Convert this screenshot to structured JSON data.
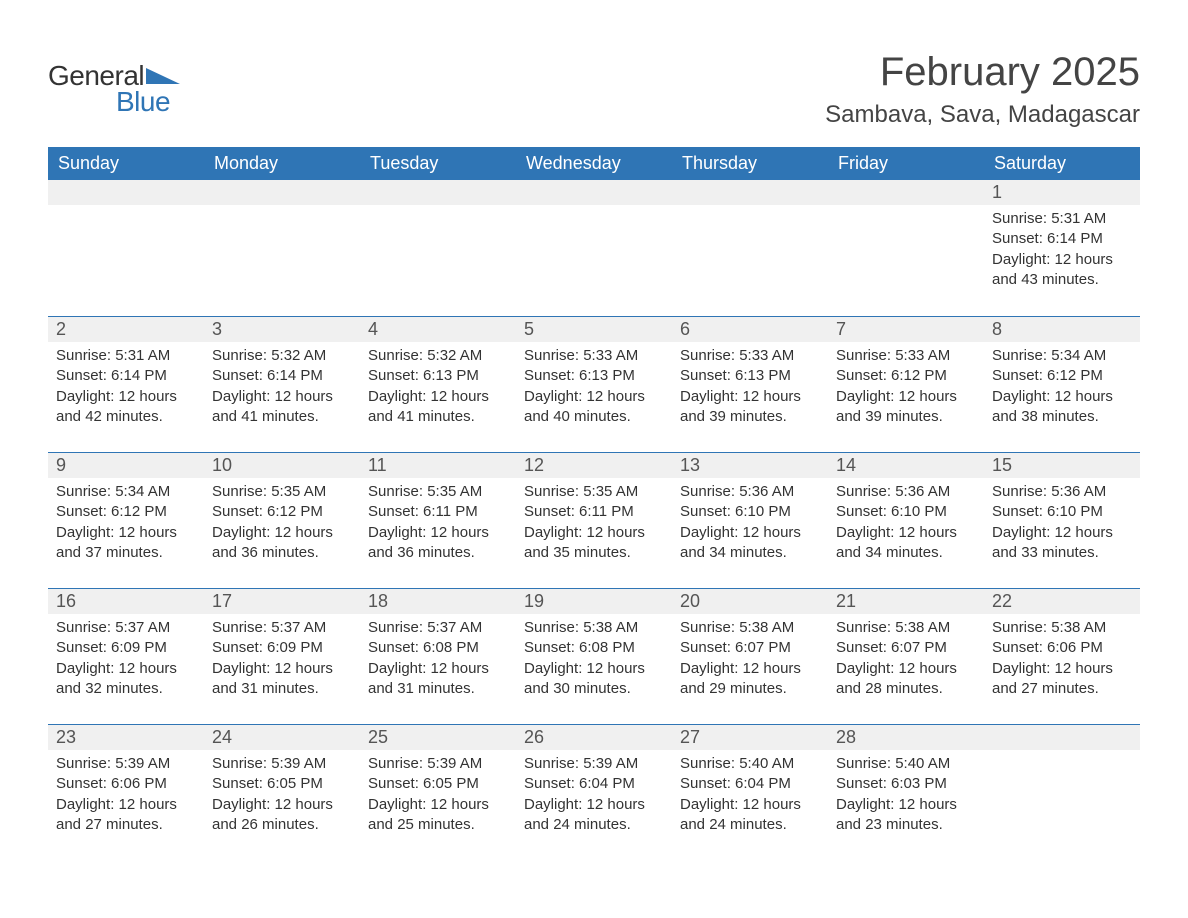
{
  "brand": {
    "word1": "General",
    "word2": "Blue",
    "accent_color": "#2f75b5"
  },
  "title": "February 2025",
  "location": "Sambava, Sava, Madagascar",
  "weekdays": [
    "Sunday",
    "Monday",
    "Tuesday",
    "Wednesday",
    "Thursday",
    "Friday",
    "Saturday"
  ],
  "colors": {
    "header_bg": "#2f75b5",
    "header_fg": "#ffffff",
    "daynum_bg": "#f0f0f0",
    "row_border": "#2f75b5",
    "text": "#333333",
    "background": "#ffffff"
  },
  "weeks": [
    [
      {
        "day": "",
        "sunrise": "",
        "sunset": "",
        "daylight": ""
      },
      {
        "day": "",
        "sunrise": "",
        "sunset": "",
        "daylight": ""
      },
      {
        "day": "",
        "sunrise": "",
        "sunset": "",
        "daylight": ""
      },
      {
        "day": "",
        "sunrise": "",
        "sunset": "",
        "daylight": ""
      },
      {
        "day": "",
        "sunrise": "",
        "sunset": "",
        "daylight": ""
      },
      {
        "day": "",
        "sunrise": "",
        "sunset": "",
        "daylight": ""
      },
      {
        "day": "1",
        "sunrise": "Sunrise: 5:31 AM",
        "sunset": "Sunset: 6:14 PM",
        "daylight": "Daylight: 12 hours and 43 minutes."
      }
    ],
    [
      {
        "day": "2",
        "sunrise": "Sunrise: 5:31 AM",
        "sunset": "Sunset: 6:14 PM",
        "daylight": "Daylight: 12 hours and 42 minutes."
      },
      {
        "day": "3",
        "sunrise": "Sunrise: 5:32 AM",
        "sunset": "Sunset: 6:14 PM",
        "daylight": "Daylight: 12 hours and 41 minutes."
      },
      {
        "day": "4",
        "sunrise": "Sunrise: 5:32 AM",
        "sunset": "Sunset: 6:13 PM",
        "daylight": "Daylight: 12 hours and 41 minutes."
      },
      {
        "day": "5",
        "sunrise": "Sunrise: 5:33 AM",
        "sunset": "Sunset: 6:13 PM",
        "daylight": "Daylight: 12 hours and 40 minutes."
      },
      {
        "day": "6",
        "sunrise": "Sunrise: 5:33 AM",
        "sunset": "Sunset: 6:13 PM",
        "daylight": "Daylight: 12 hours and 39 minutes."
      },
      {
        "day": "7",
        "sunrise": "Sunrise: 5:33 AM",
        "sunset": "Sunset: 6:12 PM",
        "daylight": "Daylight: 12 hours and 39 minutes."
      },
      {
        "day": "8",
        "sunrise": "Sunrise: 5:34 AM",
        "sunset": "Sunset: 6:12 PM",
        "daylight": "Daylight: 12 hours and 38 minutes."
      }
    ],
    [
      {
        "day": "9",
        "sunrise": "Sunrise: 5:34 AM",
        "sunset": "Sunset: 6:12 PM",
        "daylight": "Daylight: 12 hours and 37 minutes."
      },
      {
        "day": "10",
        "sunrise": "Sunrise: 5:35 AM",
        "sunset": "Sunset: 6:12 PM",
        "daylight": "Daylight: 12 hours and 36 minutes."
      },
      {
        "day": "11",
        "sunrise": "Sunrise: 5:35 AM",
        "sunset": "Sunset: 6:11 PM",
        "daylight": "Daylight: 12 hours and 36 minutes."
      },
      {
        "day": "12",
        "sunrise": "Sunrise: 5:35 AM",
        "sunset": "Sunset: 6:11 PM",
        "daylight": "Daylight: 12 hours and 35 minutes."
      },
      {
        "day": "13",
        "sunrise": "Sunrise: 5:36 AM",
        "sunset": "Sunset: 6:10 PM",
        "daylight": "Daylight: 12 hours and 34 minutes."
      },
      {
        "day": "14",
        "sunrise": "Sunrise: 5:36 AM",
        "sunset": "Sunset: 6:10 PM",
        "daylight": "Daylight: 12 hours and 34 minutes."
      },
      {
        "day": "15",
        "sunrise": "Sunrise: 5:36 AM",
        "sunset": "Sunset: 6:10 PM",
        "daylight": "Daylight: 12 hours and 33 minutes."
      }
    ],
    [
      {
        "day": "16",
        "sunrise": "Sunrise: 5:37 AM",
        "sunset": "Sunset: 6:09 PM",
        "daylight": "Daylight: 12 hours and 32 minutes."
      },
      {
        "day": "17",
        "sunrise": "Sunrise: 5:37 AM",
        "sunset": "Sunset: 6:09 PM",
        "daylight": "Daylight: 12 hours and 31 minutes."
      },
      {
        "day": "18",
        "sunrise": "Sunrise: 5:37 AM",
        "sunset": "Sunset: 6:08 PM",
        "daylight": "Daylight: 12 hours and 31 minutes."
      },
      {
        "day": "19",
        "sunrise": "Sunrise: 5:38 AM",
        "sunset": "Sunset: 6:08 PM",
        "daylight": "Daylight: 12 hours and 30 minutes."
      },
      {
        "day": "20",
        "sunrise": "Sunrise: 5:38 AM",
        "sunset": "Sunset: 6:07 PM",
        "daylight": "Daylight: 12 hours and 29 minutes."
      },
      {
        "day": "21",
        "sunrise": "Sunrise: 5:38 AM",
        "sunset": "Sunset: 6:07 PM",
        "daylight": "Daylight: 12 hours and 28 minutes."
      },
      {
        "day": "22",
        "sunrise": "Sunrise: 5:38 AM",
        "sunset": "Sunset: 6:06 PM",
        "daylight": "Daylight: 12 hours and 27 minutes."
      }
    ],
    [
      {
        "day": "23",
        "sunrise": "Sunrise: 5:39 AM",
        "sunset": "Sunset: 6:06 PM",
        "daylight": "Daylight: 12 hours and 27 minutes."
      },
      {
        "day": "24",
        "sunrise": "Sunrise: 5:39 AM",
        "sunset": "Sunset: 6:05 PM",
        "daylight": "Daylight: 12 hours and 26 minutes."
      },
      {
        "day": "25",
        "sunrise": "Sunrise: 5:39 AM",
        "sunset": "Sunset: 6:05 PM",
        "daylight": "Daylight: 12 hours and 25 minutes."
      },
      {
        "day": "26",
        "sunrise": "Sunrise: 5:39 AM",
        "sunset": "Sunset: 6:04 PM",
        "daylight": "Daylight: 12 hours and 24 minutes."
      },
      {
        "day": "27",
        "sunrise": "Sunrise: 5:40 AM",
        "sunset": "Sunset: 6:04 PM",
        "daylight": "Daylight: 12 hours and 24 minutes."
      },
      {
        "day": "28",
        "sunrise": "Sunrise: 5:40 AM",
        "sunset": "Sunset: 6:03 PM",
        "daylight": "Daylight: 12 hours and 23 minutes."
      },
      {
        "day": "",
        "sunrise": "",
        "sunset": "",
        "daylight": ""
      }
    ]
  ]
}
